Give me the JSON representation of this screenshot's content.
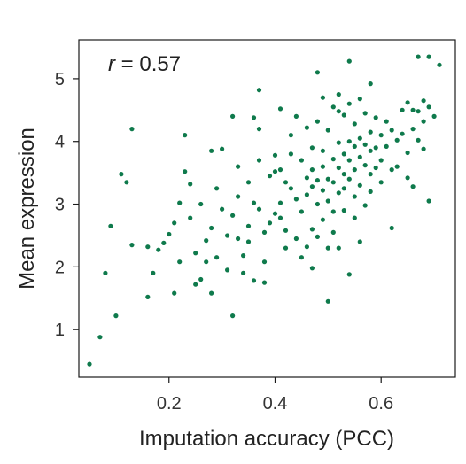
{
  "chart_data": {
    "type": "scatter",
    "title": "",
    "xlabel": "Imputation accuracy (PCC)",
    "ylabel": "Mean expression",
    "annotation": {
      "variable": "r",
      "text": " = 0.57"
    },
    "xlim": [
      0.03,
      0.74
    ],
    "ylim": [
      0.24,
      5.62
    ],
    "xticks": [
      0.2,
      0.4,
      0.6
    ],
    "xtick_labels": [
      "0.2",
      "0.4",
      "0.6"
    ],
    "yticks": [
      1,
      2,
      3,
      4,
      5
    ],
    "ytick_labels": [
      "1",
      "2",
      "3",
      "4",
      "5"
    ],
    "grid": false,
    "marker_color": "#0f7a4c",
    "points": [
      [
        0.05,
        0.45
      ],
      [
        0.07,
        0.88
      ],
      [
        0.08,
        1.9
      ],
      [
        0.09,
        2.65
      ],
      [
        0.1,
        1.22
      ],
      [
        0.11,
        3.48
      ],
      [
        0.12,
        3.35
      ],
      [
        0.13,
        4.2
      ],
      [
        0.13,
        2.35
      ],
      [
        0.16,
        1.52
      ],
      [
        0.16,
        2.32
      ],
      [
        0.17,
        1.9
      ],
      [
        0.18,
        2.27
      ],
      [
        0.19,
        2.38
      ],
      [
        0.2,
        2.52
      ],
      [
        0.21,
        2.7
      ],
      [
        0.21,
        1.58
      ],
      [
        0.22,
        3.02
      ],
      [
        0.22,
        2.08
      ],
      [
        0.23,
        3.52
      ],
      [
        0.23,
        4.1
      ],
      [
        0.24,
        3.32
      ],
      [
        0.24,
        2.78
      ],
      [
        0.25,
        2.22
      ],
      [
        0.25,
        1.72
      ],
      [
        0.26,
        3.0
      ],
      [
        0.26,
        1.8
      ],
      [
        0.27,
        2.42
      ],
      [
        0.27,
        2.08
      ],
      [
        0.28,
        3.85
      ],
      [
        0.28,
        2.62
      ],
      [
        0.28,
        1.58
      ],
      [
        0.29,
        3.25
      ],
      [
        0.29,
        2.15
      ],
      [
        0.3,
        3.88
      ],
      [
        0.3,
        2.92
      ],
      [
        0.31,
        2.5
      ],
      [
        0.31,
        1.95
      ],
      [
        0.32,
        4.4
      ],
      [
        0.32,
        2.82
      ],
      [
        0.32,
        1.22
      ],
      [
        0.33,
        3.6
      ],
      [
        0.33,
        3.12
      ],
      [
        0.33,
        2.45
      ],
      [
        0.34,
        2.18
      ],
      [
        0.34,
        1.9
      ],
      [
        0.35,
        3.35
      ],
      [
        0.35,
        2.65
      ],
      [
        0.35,
        2.4
      ],
      [
        0.36,
        4.38
      ],
      [
        0.36,
        3.02
      ],
      [
        0.36,
        1.78
      ],
      [
        0.37,
        4.82
      ],
      [
        0.37,
        4.2
      ],
      [
        0.37,
        3.7
      ],
      [
        0.37,
        2.92
      ],
      [
        0.38,
        2.55
      ],
      [
        0.38,
        2.08
      ],
      [
        0.38,
        1.75
      ],
      [
        0.39,
        3.45
      ],
      [
        0.39,
        2.7
      ],
      [
        0.4,
        3.78
      ],
      [
        0.4,
        3.52
      ],
      [
        0.4,
        2.85
      ],
      [
        0.41,
        4.52
      ],
      [
        0.41,
        3.55
      ],
      [
        0.41,
        3.02
      ],
      [
        0.41,
        2.78
      ],
      [
        0.42,
        3.35
      ],
      [
        0.42,
        2.58
      ],
      [
        0.42,
        2.3
      ],
      [
        0.43,
        4.1
      ],
      [
        0.43,
        3.8
      ],
      [
        0.43,
        3.25
      ],
      [
        0.44,
        4.4
      ],
      [
        0.44,
        3.08
      ],
      [
        0.44,
        2.45
      ],
      [
        0.45,
        3.7
      ],
      [
        0.45,
        2.88
      ],
      [
        0.45,
        2.15
      ],
      [
        0.46,
        4.22
      ],
      [
        0.46,
        3.42
      ],
      [
        0.46,
        3.15
      ],
      [
        0.46,
        2.32
      ],
      [
        0.47,
        3.9
      ],
      [
        0.47,
        3.55
      ],
      [
        0.47,
        3.28
      ],
      [
        0.47,
        2.6
      ],
      [
        0.47,
        1.98
      ],
      [
        0.48,
        5.1
      ],
      [
        0.48,
        4.32
      ],
      [
        0.48,
        3.38
      ],
      [
        0.48,
        3.0
      ],
      [
        0.48,
        2.48
      ],
      [
        0.49,
        4.7
      ],
      [
        0.49,
        3.85
      ],
      [
        0.49,
        3.6
      ],
      [
        0.49,
        3.22
      ],
      [
        0.49,
        2.75
      ],
      [
        0.5,
        4.18
      ],
      [
        0.5,
        3.4
      ],
      [
        0.5,
        3.05
      ],
      [
        0.5,
        2.3
      ],
      [
        0.5,
        1.45
      ],
      [
        0.51,
        4.55
      ],
      [
        0.51,
        3.72
      ],
      [
        0.51,
        3.35
      ],
      [
        0.51,
        2.88
      ],
      [
        0.51,
        2.55
      ],
      [
        0.52,
        4.75
      ],
      [
        0.52,
        4.48
      ],
      [
        0.52,
        3.98
      ],
      [
        0.52,
        3.58
      ],
      [
        0.52,
        3.18
      ],
      [
        0.52,
        2.3
      ],
      [
        0.53,
        4.42
      ],
      [
        0.53,
        3.8
      ],
      [
        0.53,
        3.48
      ],
      [
        0.53,
        3.25
      ],
      [
        0.53,
        2.9
      ],
      [
        0.54,
        5.28
      ],
      [
        0.54,
        4.6
      ],
      [
        0.54,
        4.0
      ],
      [
        0.54,
        3.7
      ],
      [
        0.54,
        3.4
      ],
      [
        0.54,
        1.88
      ],
      [
        0.55,
        4.28
      ],
      [
        0.55,
        3.92
      ],
      [
        0.55,
        3.55
      ],
      [
        0.55,
        3.12
      ],
      [
        0.55,
        2.78
      ],
      [
        0.56,
        4.68
      ],
      [
        0.56,
        4.05
      ],
      [
        0.56,
        3.75
      ],
      [
        0.56,
        3.3
      ],
      [
        0.56,
        2.4
      ],
      [
        0.57,
        4.45
      ],
      [
        0.57,
        3.95
      ],
      [
        0.57,
        3.62
      ],
      [
        0.57,
        2.98
      ],
      [
        0.58,
        4.92
      ],
      [
        0.58,
        4.15
      ],
      [
        0.58,
        3.85
      ],
      [
        0.58,
        3.48
      ],
      [
        0.58,
        3.2
      ],
      [
        0.59,
        4.38
      ],
      [
        0.59,
        3.9
      ],
      [
        0.59,
        3.58
      ],
      [
        0.6,
        4.1
      ],
      [
        0.6,
        3.7
      ],
      [
        0.6,
        3.35
      ],
      [
        0.61,
        4.32
      ],
      [
        0.61,
        3.92
      ],
      [
        0.62,
        4.18
      ],
      [
        0.62,
        3.55
      ],
      [
        0.62,
        2.62
      ],
      [
        0.63,
        4.02
      ],
      [
        0.63,
        3.6
      ],
      [
        0.64,
        4.5
      ],
      [
        0.64,
        4.12
      ],
      [
        0.65,
        4.62
      ],
      [
        0.65,
        3.82
      ],
      [
        0.65,
        3.42
      ],
      [
        0.66,
        4.5
      ],
      [
        0.66,
        4.2
      ],
      [
        0.66,
        3.28
      ],
      [
        0.67,
        5.35
      ],
      [
        0.67,
        4.48
      ],
      [
        0.67,
        4.02
      ],
      [
        0.68,
        4.65
      ],
      [
        0.68,
        4.32
      ],
      [
        0.68,
        3.88
      ],
      [
        0.69,
        5.35
      ],
      [
        0.69,
        4.55
      ],
      [
        0.69,
        3.05
      ],
      [
        0.7,
        4.4
      ],
      [
        0.71,
        5.22
      ]
    ]
  }
}
